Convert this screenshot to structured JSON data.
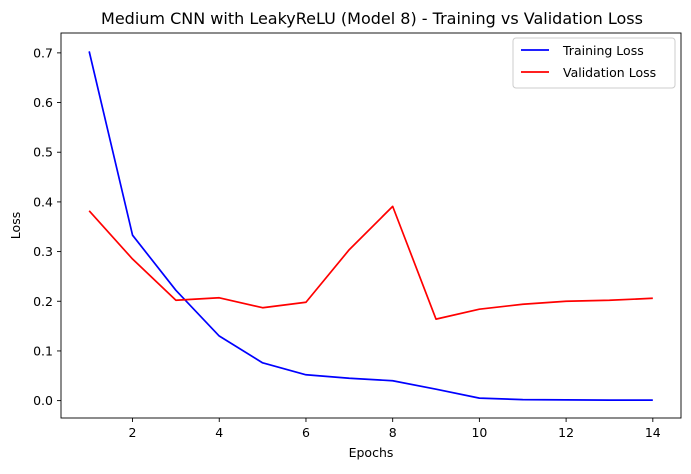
{
  "chart_data": {
    "type": "line",
    "title": "Medium CNN with LeakyReLU (Model 8) - Training vs Validation Loss",
    "xlabel": "Epochs",
    "ylabel": "Loss",
    "x": [
      1,
      2,
      3,
      4,
      5,
      6,
      7,
      8,
      9,
      10,
      11,
      12,
      13,
      14
    ],
    "xlim": [
      0.35,
      14.65
    ],
    "ylim": [
      -0.035,
      0.74
    ],
    "xticks": [
      2,
      4,
      6,
      8,
      10,
      12,
      14
    ],
    "xtick_labels": [
      "2",
      "4",
      "6",
      "8",
      "10",
      "12",
      "14"
    ],
    "yticks": [
      0.0,
      0.1,
      0.2,
      0.3,
      0.4,
      0.5,
      0.6,
      0.7
    ],
    "ytick_labels": [
      "0.0",
      "0.1",
      "0.2",
      "0.3",
      "0.4",
      "0.5",
      "0.6",
      "0.7"
    ],
    "grid": false,
    "legend_position": "top-right",
    "series": [
      {
        "name": "Training Loss",
        "color": "#0000ff",
        "values": [
          0.703,
          0.333,
          0.222,
          0.13,
          0.076,
          0.052,
          0.045,
          0.04,
          0.023,
          0.005,
          0.002,
          0.0015,
          0.001,
          0.001
        ]
      },
      {
        "name": "Validation Loss",
        "color": "#ff0000",
        "values": [
          0.382,
          0.285,
          0.202,
          0.207,
          0.187,
          0.198,
          0.304,
          0.391,
          0.164,
          0.184,
          0.194,
          0.2,
          0.202,
          0.206
        ]
      }
    ]
  }
}
